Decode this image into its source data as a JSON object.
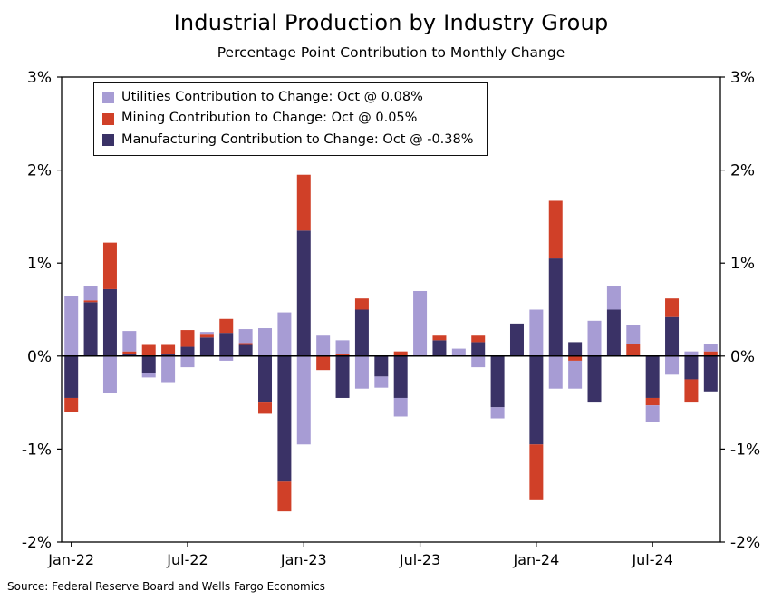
{
  "chart_data": {
    "type": "bar",
    "stacked": true,
    "title": "Industrial Production by Industry Group",
    "subtitle": "Percentage Point Contribution to Monthly Change",
    "source": "Source: Federal Reserve Board and Wells Fargo Economics",
    "grid": false,
    "legend_position": "top-left",
    "ylim": [
      -2,
      3
    ],
    "yticks": [
      {
        "value": 3,
        "label": "3%"
      },
      {
        "value": 2,
        "label": "2%"
      },
      {
        "value": 1,
        "label": "1%"
      },
      {
        "value": 0,
        "label": "0%"
      },
      {
        "value": -1,
        "label": "-1%"
      },
      {
        "value": -2,
        "label": "-2%"
      }
    ],
    "xticks": [
      "Jan-22",
      "Jul-22",
      "Jan-23",
      "Jul-23",
      "Jan-24",
      "Jul-24"
    ],
    "months": [
      "Jan-22",
      "Feb-22",
      "Mar-22",
      "Apr-22",
      "May-22",
      "Jun-22",
      "Jul-22",
      "Aug-22",
      "Sep-22",
      "Oct-22",
      "Nov-22",
      "Dec-22",
      "Jan-23",
      "Feb-23",
      "Mar-23",
      "Apr-23",
      "May-23",
      "Jun-23",
      "Jul-23",
      "Aug-23",
      "Sep-23",
      "Oct-23",
      "Nov-23",
      "Dec-23",
      "Jan-24",
      "Feb-24",
      "Mar-24",
      "Apr-24",
      "May-24",
      "Jun-24",
      "Jul-24",
      "Aug-24",
      "Sep-24",
      "Oct-24"
    ],
    "series": [
      {
        "name": "Utilities",
        "legend": "Utilities Contribution to Change: Oct @ 0.08%",
        "color": "#a79cd4",
        "values": [
          0.65,
          0.15,
          -0.4,
          0.22,
          -0.05,
          -0.28,
          -0.12,
          0.03,
          -0.05,
          0.15,
          0.3,
          0.47,
          -0.95,
          0.22,
          0.15,
          -0.35,
          -0.12,
          -0.2,
          0.7,
          0.0,
          0.08,
          -0.12,
          -0.12,
          0.0,
          0.5,
          -0.35,
          -0.3,
          0.38,
          0.25,
          0.2,
          -0.18,
          -0.2,
          0.05,
          0.08
        ]
      },
      {
        "name": "Mining",
        "legend": "Mining Contribution to Change: Oct @ 0.05%",
        "color": "#d04028",
        "values": [
          -0.15,
          0.02,
          0.5,
          0.03,
          0.12,
          0.1,
          0.18,
          0.03,
          0.15,
          0.02,
          -0.12,
          -0.32,
          0.6,
          -0.15,
          0.02,
          0.12,
          0.0,
          0.05,
          0.0,
          0.05,
          0.0,
          0.07,
          0.0,
          0.0,
          -0.6,
          0.62,
          -0.05,
          0.0,
          0.0,
          0.13,
          -0.08,
          0.2,
          -0.25,
          0.05
        ]
      },
      {
        "name": "Manufacturing",
        "legend": "Manufacturing Contribution to Change: Oct @ -0.38%",
        "color": "#3a3266",
        "values": [
          -0.45,
          0.58,
          0.72,
          0.02,
          -0.18,
          0.02,
          0.1,
          0.2,
          0.25,
          0.12,
          -0.5,
          -1.35,
          1.35,
          0.0,
          -0.45,
          0.5,
          -0.22,
          -0.45,
          0.0,
          0.17,
          0.0,
          0.15,
          -0.55,
          0.35,
          -0.95,
          1.05,
          0.15,
          -0.5,
          0.5,
          0.0,
          -0.45,
          0.42,
          -0.25,
          -0.38
        ]
      }
    ]
  }
}
